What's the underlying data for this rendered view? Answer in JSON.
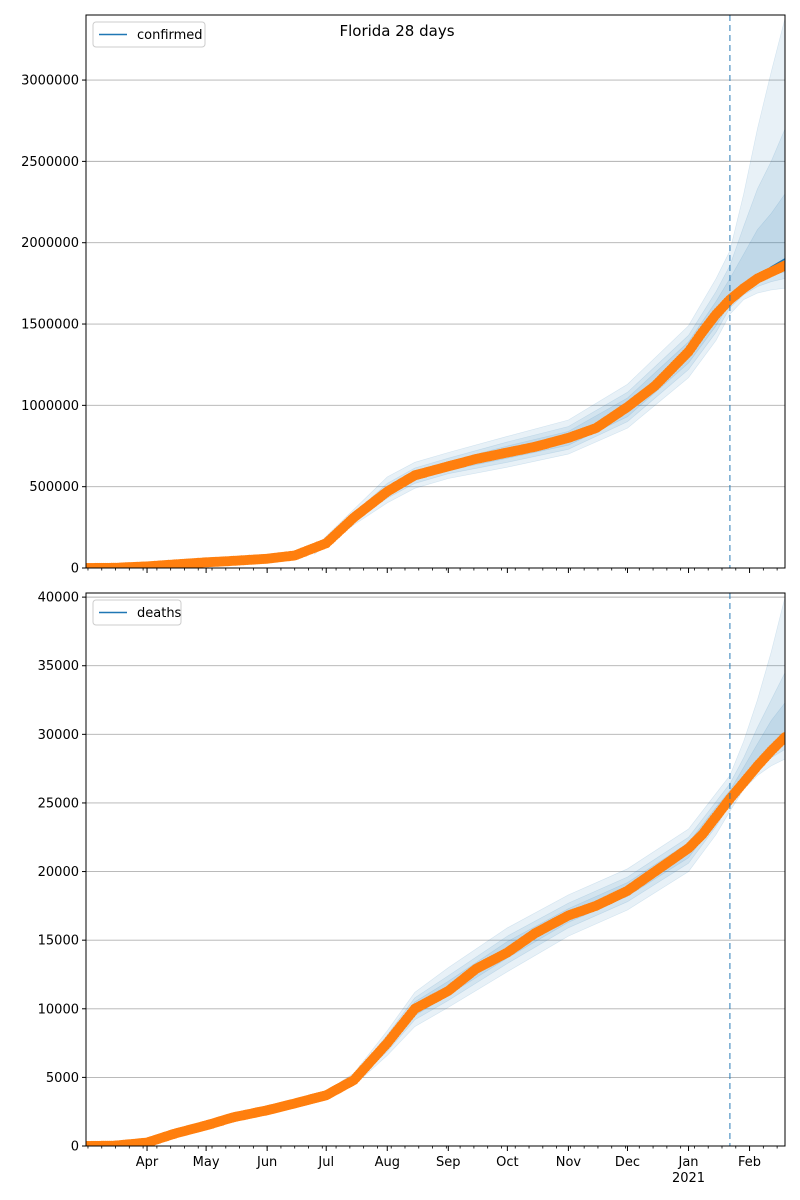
{
  "figure": {
    "suptitle": "Florida 28 days",
    "x_date_ticks": [
      "Apr",
      "May",
      "Jun",
      "Jul",
      "Aug",
      "Sep",
      "Oct",
      "Nov",
      "Dec",
      "Jan",
      "Feb"
    ],
    "x_year_label": "2021",
    "forecast_start_date": "2021-01-22",
    "colors": {
      "model": "#1f77b4",
      "band": "#1f77b4",
      "observed": "#ff7f0e",
      "grid": "#b0b0b0",
      "forecast_line": "#1f77b4"
    }
  },
  "chart_data": [
    {
      "type": "line",
      "title": "",
      "legend": {
        "label": "confirmed",
        "position": "upper-left"
      },
      "xlabel": "",
      "ylabel": "",
      "xlim": [
        "2020-03-01",
        "2021-02-19"
      ],
      "ylim": [
        0,
        3400000
      ],
      "yticks": [
        0,
        500000,
        1000000,
        1500000,
        2000000,
        2500000,
        3000000
      ],
      "ytick_labels": [
        "0",
        "500000",
        "1000000",
        "1500000",
        "2000000",
        "2500000",
        "3000000"
      ],
      "grid": "horizontal",
      "series": [
        {
          "name": "confirmed",
          "x": [
            "2020-03-01",
            "2020-03-15",
            "2020-04-01",
            "2020-04-15",
            "2020-05-01",
            "2020-05-15",
            "2020-06-01",
            "2020-06-15",
            "2020-07-01",
            "2020-07-15",
            "2020-08-01",
            "2020-08-15",
            "2020-09-01",
            "2020-09-15",
            "2020-10-01",
            "2020-10-15",
            "2020-11-01",
            "2020-11-15",
            "2020-12-01",
            "2020-12-15",
            "2021-01-01",
            "2021-01-08",
            "2021-01-15",
            "2021-01-22",
            "2021-01-29",
            "2021-02-05",
            "2021-02-12",
            "2021-02-19"
          ],
          "y": [
            0,
            1000,
            10000,
            22000,
            35000,
            44000,
            57000,
            77000,
            152000,
            310000,
            470000,
            570000,
            625000,
            670000,
            710000,
            745000,
            800000,
            860000,
            990000,
            1120000,
            1330000,
            1450000,
            1560000,
            1650000,
            1720000,
            1790000,
            1850000,
            1900000
          ]
        }
      ],
      "bands": [
        {
          "x": [
            "2020-06-25",
            "2020-07-15",
            "2020-08-01",
            "2020-08-15",
            "2020-09-01",
            "2020-10-01",
            "2020-11-01",
            "2020-12-01",
            "2021-01-01",
            "2021-01-15",
            "2021-01-22",
            "2021-01-29",
            "2021-02-05",
            "2021-02-12",
            "2021-02-19"
          ],
          "lower": [
            85000,
            265000,
            400000,
            490000,
            550000,
            620000,
            700000,
            860000,
            1170000,
            1400000,
            1560000,
            1650000,
            1690000,
            1710000,
            1720000
          ],
          "upper": [
            125000,
            360000,
            560000,
            650000,
            710000,
            810000,
            910000,
            1130000,
            1490000,
            1780000,
            1950000,
            2300000,
            2700000,
            3050000,
            3380000
          ]
        },
        {
          "x": [
            "2020-06-25",
            "2020-07-15",
            "2020-08-01",
            "2020-08-15",
            "2020-09-01",
            "2020-10-01",
            "2020-11-01",
            "2020-12-01",
            "2021-01-01",
            "2021-01-15",
            "2021-01-22",
            "2021-01-29",
            "2021-02-05",
            "2021-02-12",
            "2021-02-19"
          ],
          "lower": [
            95000,
            285000,
            430000,
            520000,
            580000,
            650000,
            730000,
            900000,
            1220000,
            1450000,
            1600000,
            1680000,
            1730000,
            1760000,
            1780000
          ],
          "upper": [
            115000,
            335000,
            520000,
            615000,
            675000,
            775000,
            870000,
            1080000,
            1430000,
            1700000,
            1860000,
            2100000,
            2330000,
            2500000,
            2700000
          ]
        },
        {
          "x": [
            "2020-06-25",
            "2020-07-15",
            "2020-08-01",
            "2020-08-15",
            "2020-09-01",
            "2020-10-01",
            "2020-11-01",
            "2020-12-01",
            "2021-01-01",
            "2021-01-15",
            "2021-01-22",
            "2021-01-29",
            "2021-02-05",
            "2021-02-12",
            "2021-02-19"
          ],
          "lower": [
            100000,
            295000,
            450000,
            540000,
            600000,
            675000,
            755000,
            930000,
            1260000,
            1490000,
            1630000,
            1700000,
            1760000,
            1800000,
            1820000
          ],
          "upper": [
            110000,
            320000,
            495000,
            595000,
            655000,
            750000,
            840000,
            1045000,
            1390000,
            1640000,
            1780000,
            1930000,
            2080000,
            2180000,
            2300000
          ]
        }
      ],
      "observed": {
        "x": [
          "2020-03-01",
          "2020-03-15",
          "2020-04-01",
          "2020-04-15",
          "2020-05-01",
          "2020-05-15",
          "2020-06-01",
          "2020-06-15",
          "2020-07-01",
          "2020-07-15",
          "2020-08-01",
          "2020-08-15",
          "2020-09-01",
          "2020-09-15",
          "2020-10-01",
          "2020-10-15",
          "2020-11-01",
          "2020-11-15",
          "2020-12-01",
          "2020-12-15",
          "2021-01-01",
          "2021-01-08",
          "2021-01-15",
          "2021-01-22",
          "2021-01-29",
          "2021-02-05",
          "2021-02-12",
          "2021-02-19"
        ],
        "y": [
          0,
          1000,
          10000,
          22000,
          35000,
          44000,
          57000,
          77000,
          152000,
          310000,
          470000,
          570000,
          625000,
          670000,
          710000,
          745000,
          800000,
          860000,
          990000,
          1120000,
          1330000,
          1450000,
          1560000,
          1650000,
          1720000,
          1780000,
          1820000,
          1860000
        ]
      }
    },
    {
      "type": "line",
      "title": "",
      "legend": {
        "label": "deaths",
        "position": "upper-left"
      },
      "xlabel": "",
      "ylabel": "",
      "xlim": [
        "2020-03-01",
        "2021-02-19"
      ],
      "ylim": [
        0,
        40300
      ],
      "yticks": [
        0,
        5000,
        10000,
        15000,
        20000,
        25000,
        30000,
        35000,
        40000
      ],
      "ytick_labels": [
        "0",
        "5000",
        "10000",
        "15000",
        "20000",
        "25000",
        "30000",
        "35000",
        "40000"
      ],
      "grid": "horizontal",
      "series": [
        {
          "name": "deaths",
          "x": [
            "2020-03-01",
            "2020-03-15",
            "2020-04-01",
            "2020-04-15",
            "2020-05-01",
            "2020-05-15",
            "2020-06-01",
            "2020-06-15",
            "2020-07-01",
            "2020-07-15",
            "2020-08-01",
            "2020-08-15",
            "2020-09-01",
            "2020-09-15",
            "2020-10-01",
            "2020-10-15",
            "2020-11-01",
            "2020-11-15",
            "2020-12-01",
            "2020-12-15",
            "2021-01-01",
            "2021-01-08",
            "2021-01-15",
            "2021-01-22",
            "2021-01-29",
            "2021-02-05",
            "2021-02-12",
            "2021-02-19"
          ],
          "y": [
            0,
            20,
            250,
            900,
            1500,
            2100,
            2600,
            3100,
            3700,
            4800,
            7500,
            10000,
            11300,
            12900,
            14100,
            15500,
            16800,
            17500,
            18600,
            20000,
            21700,
            22700,
            24000,
            25300,
            26500,
            27700,
            28800,
            29800
          ]
        }
      ],
      "bands": [
        {
          "x": [
            "2020-07-01",
            "2020-07-15",
            "2020-08-01",
            "2020-08-15",
            "2020-09-01",
            "2020-10-01",
            "2020-11-01",
            "2020-12-01",
            "2021-01-01",
            "2021-01-15",
            "2021-01-22",
            "2021-01-29",
            "2021-02-05",
            "2021-02-12",
            "2021-02-19"
          ],
          "lower": [
            3500,
            4400,
            6600,
            8700,
            10100,
            12700,
            15300,
            17200,
            20000,
            22700,
            24400,
            26000,
            27000,
            27700,
            28200
          ],
          "upper": [
            4000,
            5300,
            8400,
            11200,
            13000,
            15900,
            18300,
            20200,
            23100,
            25700,
            27000,
            29500,
            32500,
            36000,
            40000
          ]
        },
        {
          "x": [
            "2020-07-01",
            "2020-07-15",
            "2020-08-01",
            "2020-08-15",
            "2020-09-01",
            "2020-10-01",
            "2020-11-01",
            "2020-12-01",
            "2021-01-01",
            "2021-01-15",
            "2021-01-22",
            "2021-01-29",
            "2021-02-05",
            "2021-02-12",
            "2021-02-19"
          ],
          "lower": [
            3600,
            4550,
            6900,
            9200,
            10600,
            13300,
            15900,
            17800,
            20600,
            23300,
            24900,
            26400,
            27500,
            28300,
            28900
          ],
          "upper": [
            3900,
            5100,
            8100,
            10800,
            12400,
            15300,
            17700,
            19600,
            22500,
            25100,
            26400,
            28300,
            30500,
            32500,
            34500
          ]
        },
        {
          "x": [
            "2020-07-01",
            "2020-07-15",
            "2020-08-01",
            "2020-08-15",
            "2020-09-01",
            "2020-10-01",
            "2020-11-01",
            "2020-12-01",
            "2021-01-01",
            "2021-01-15",
            "2021-01-22",
            "2021-01-29",
            "2021-02-05",
            "2021-02-12",
            "2021-02-19"
          ],
          "lower": [
            3650,
            4650,
            7100,
            9500,
            11000,
            13700,
            16300,
            18200,
            21000,
            23700,
            25200,
            26700,
            27900,
            28800,
            29400
          ],
          "upper": [
            3800,
            4950,
            7900,
            10500,
            12000,
            14900,
            17300,
            19200,
            22100,
            24700,
            25900,
            27600,
            29300,
            31000,
            32300
          ]
        }
      ],
      "observed": {
        "x": [
          "2020-03-01",
          "2020-03-15",
          "2020-04-01",
          "2020-04-15",
          "2020-05-01",
          "2020-05-15",
          "2020-06-01",
          "2020-06-15",
          "2020-07-01",
          "2020-07-15",
          "2020-08-01",
          "2020-08-15",
          "2020-09-01",
          "2020-09-15",
          "2020-10-01",
          "2020-10-15",
          "2020-11-01",
          "2020-11-15",
          "2020-12-01",
          "2020-12-15",
          "2021-01-01",
          "2021-01-08",
          "2021-01-15",
          "2021-01-22",
          "2021-01-29",
          "2021-02-05",
          "2021-02-12",
          "2021-02-19"
        ],
        "y": [
          0,
          20,
          250,
          900,
          1500,
          2100,
          2600,
          3100,
          3700,
          4800,
          7500,
          10000,
          11300,
          12900,
          14100,
          15500,
          16800,
          17500,
          18600,
          20000,
          21700,
          22700,
          24000,
          25300,
          26500,
          27700,
          28800,
          29800
        ]
      }
    }
  ]
}
